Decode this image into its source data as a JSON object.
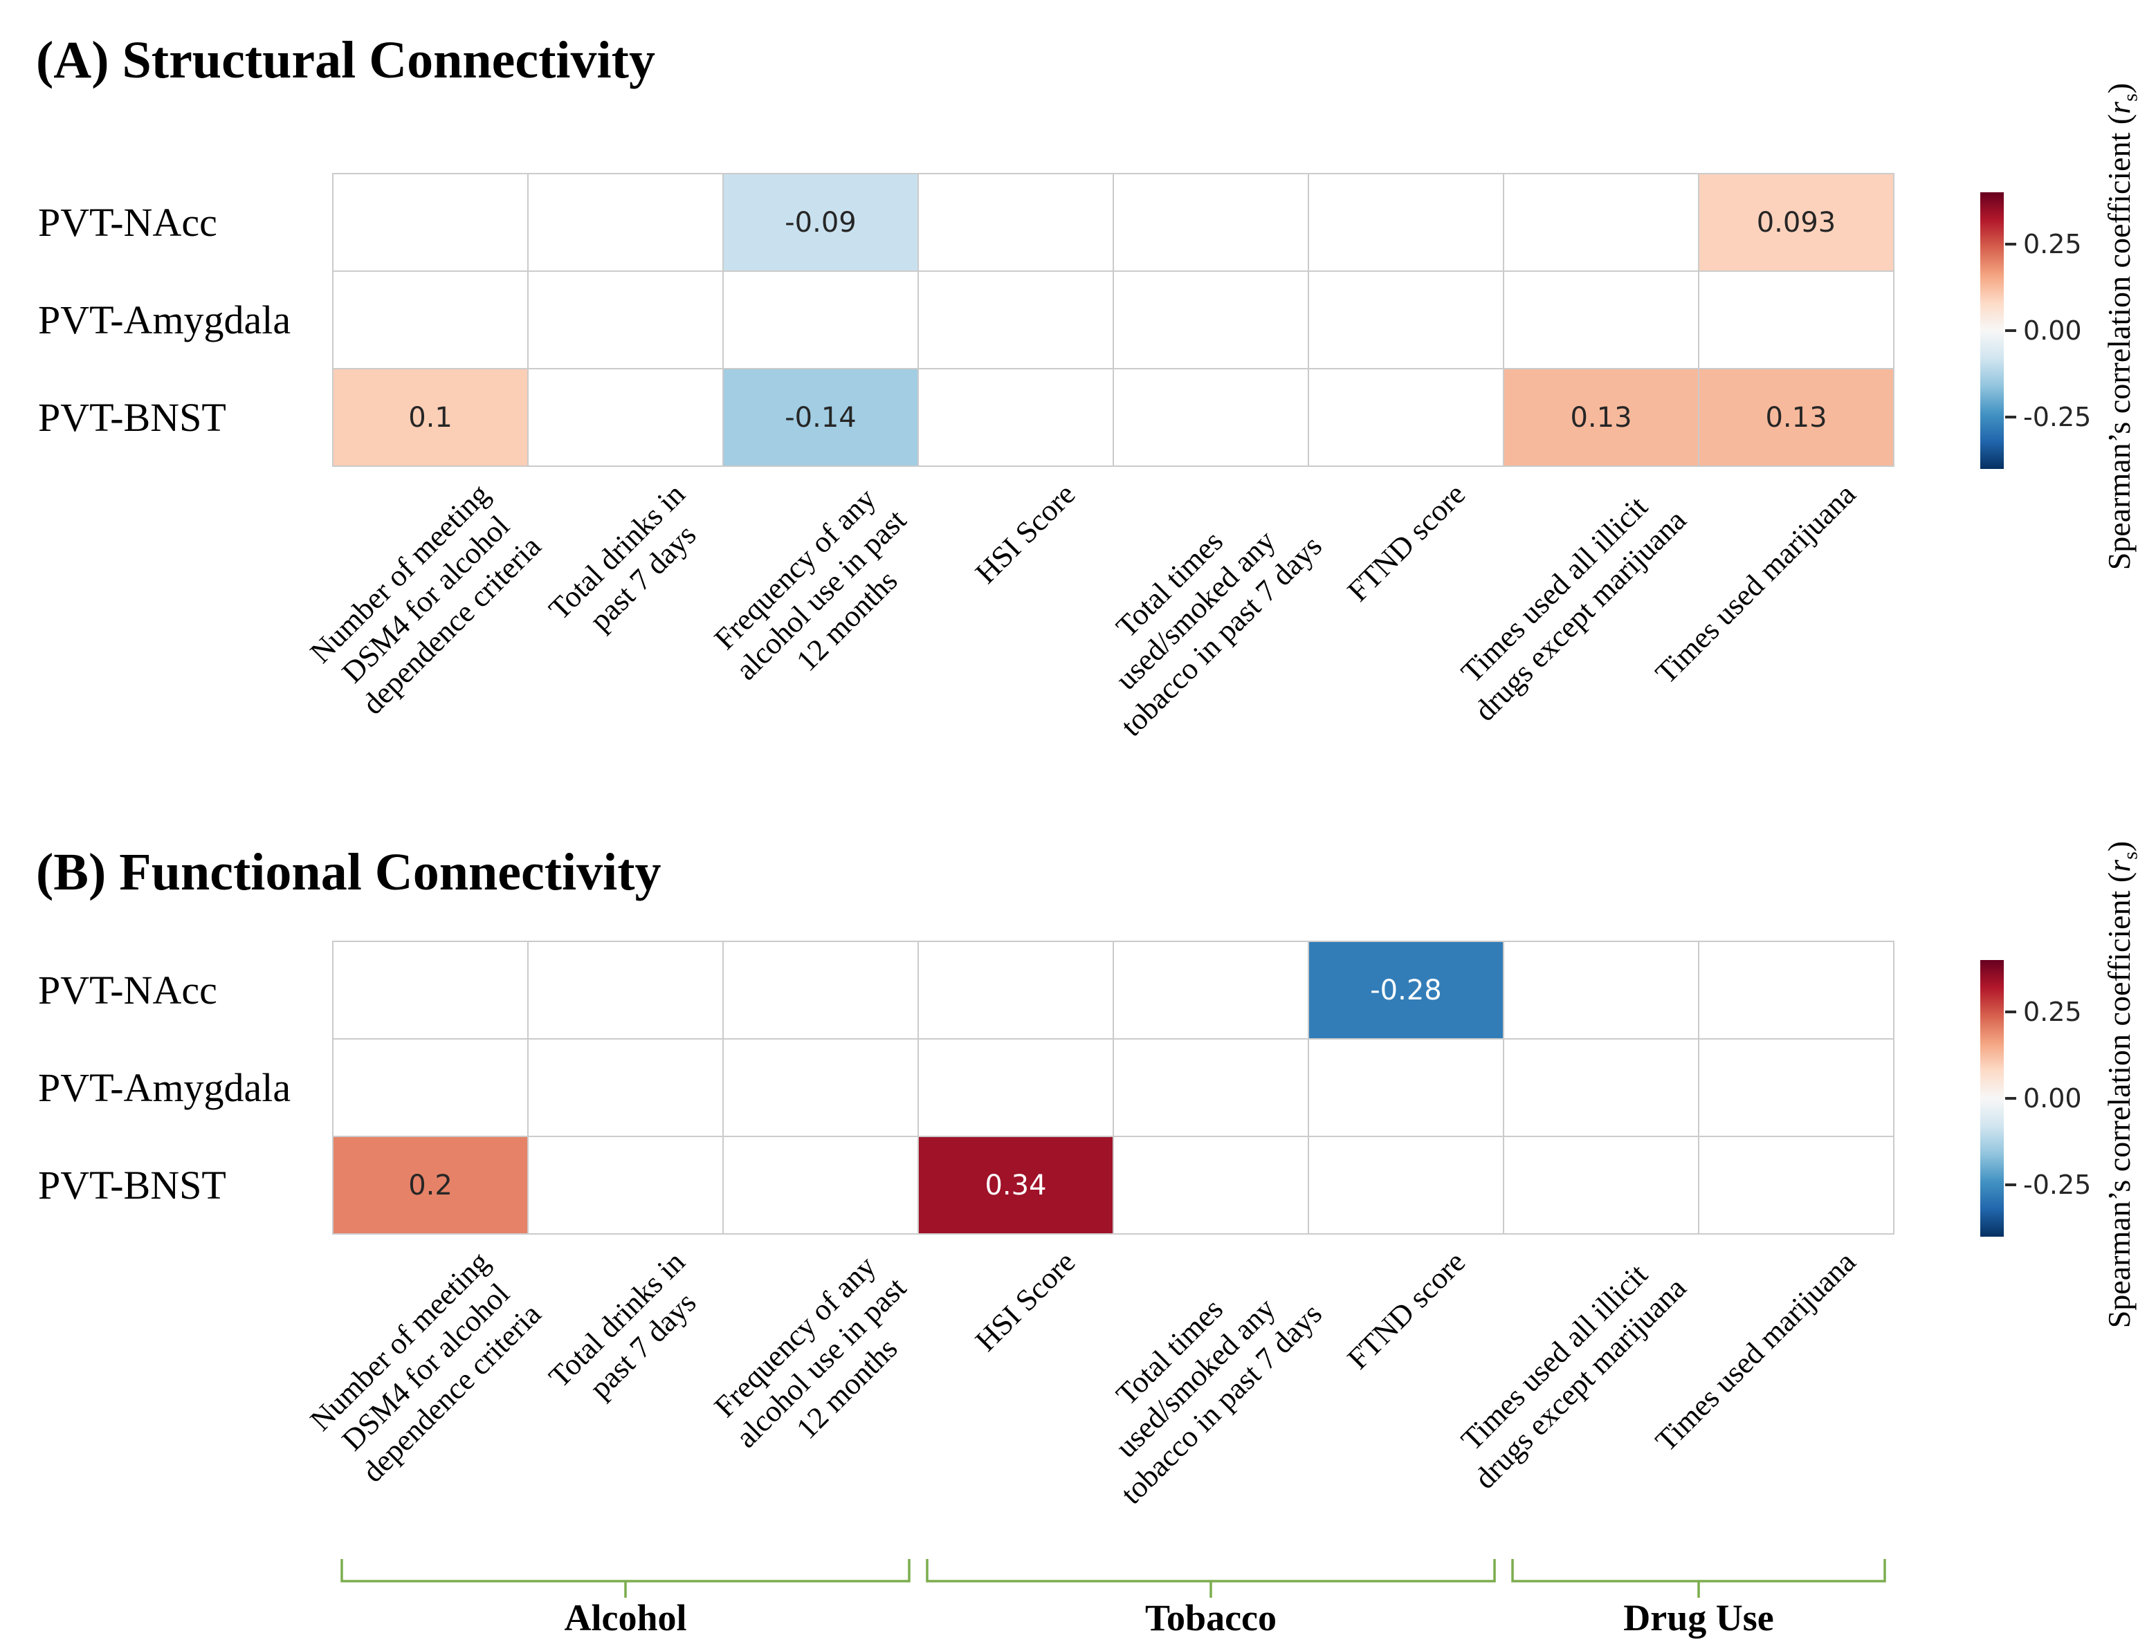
{
  "chart_data": [
    {
      "type": "heatmap",
      "panel": "A",
      "title": "(A) Structural Connectivity",
      "rows": [
        "PVT-NAcc",
        "PVT-Amygdala",
        "PVT-BNST"
      ],
      "columns": [
        "Number of meeting\nDSM4 for alcohol\ndependence criteria",
        "Total drinks in\npast 7 days",
        "Frequency of any\nalcohol use in past\n12 months",
        "HSI Score",
        "Total times\nused/smoked any\ntobacco in past 7 days",
        "FTND score",
        "Times used all illicit\ndrugs except marijuana",
        "Times used marijuana"
      ],
      "values": [
        [
          null,
          null,
          -0.09,
          null,
          null,
          null,
          null,
          0.093
        ],
        [
          null,
          null,
          null,
          null,
          null,
          null,
          null,
          null
        ],
        [
          0.1,
          null,
          -0.14,
          null,
          null,
          null,
          0.13,
          0.13
        ]
      ],
      "value_labels": [
        [
          null,
          null,
          "-0.09",
          null,
          null,
          null,
          null,
          "0.093"
        ],
        [
          null,
          null,
          null,
          null,
          null,
          null,
          null,
          null
        ],
        [
          "0.1",
          null,
          "-0.14",
          null,
          null,
          null,
          "0.13",
          "0.13"
        ]
      ],
      "vmin": -0.4,
      "vmax": 0.4,
      "colorbar_ticks": [
        0.25,
        0,
        -0.25
      ],
      "colorbar_tick_labels": [
        "0.25",
        "0.00",
        "-0.25"
      ],
      "colorbar_label_prefix": "Spearman’s correlation coefficient (",
      "colorbar_label_var": "r",
      "colorbar_label_sub": "s",
      "colorbar_label_suffix": ")",
      "colormap_stops": [
        [
          0,
          "#053061"
        ],
        [
          0.1,
          "#2166ac"
        ],
        [
          0.2,
          "#4393c3"
        ],
        [
          0.3,
          "#92c5de"
        ],
        [
          0.4,
          "#d1e5f0"
        ],
        [
          0.5,
          "#f7f7f7"
        ],
        [
          0.6,
          "#fddbc7"
        ],
        [
          0.7,
          "#f4a582"
        ],
        [
          0.8,
          "#d6604d"
        ],
        [
          0.9,
          "#b2182b"
        ],
        [
          1,
          "#67001f"
        ]
      ]
    },
    {
      "type": "heatmap",
      "panel": "B",
      "title": "(B) Functional Connectivity",
      "rows": [
        "PVT-NAcc",
        "PVT-Amygdala",
        "PVT-BNST"
      ],
      "columns": [
        "Number of meeting\nDSM4 for alcohol\ndependence criteria",
        "Total drinks in\npast 7 days",
        "Frequency of any\nalcohol use in past\n12 months",
        "HSI Score",
        "Total times\nused/smoked any\ntobacco in past 7 days",
        "FTND score",
        "Times used all illicit\ndrugs except marijuana",
        "Times used marijuana"
      ],
      "values": [
        [
          null,
          null,
          null,
          null,
          null,
          -0.28,
          null,
          null
        ],
        [
          null,
          null,
          null,
          null,
          null,
          null,
          null,
          null
        ],
        [
          0.2,
          null,
          null,
          0.34,
          null,
          null,
          null,
          null
        ]
      ],
      "value_labels": [
        [
          null,
          null,
          null,
          null,
          null,
          "-0.28",
          null,
          null
        ],
        [
          null,
          null,
          null,
          null,
          null,
          null,
          null,
          null
        ],
        [
          "0.2",
          null,
          null,
          "0.34",
          null,
          null,
          null,
          null
        ]
      ],
      "vmin": -0.4,
      "vmax": 0.4,
      "colorbar_ticks": [
        0.25,
        0,
        -0.25
      ],
      "colorbar_tick_labels": [
        "0.25",
        "0.00",
        "-0.25"
      ],
      "colorbar_label_prefix": "Spearman’s correlation coefficient (",
      "colorbar_label_var": "r",
      "colorbar_label_sub": "s",
      "colorbar_label_suffix": ")",
      "colormap_stops": [
        [
          0,
          "#053061"
        ],
        [
          0.1,
          "#2166ac"
        ],
        [
          0.2,
          "#4393c3"
        ],
        [
          0.3,
          "#92c5de"
        ],
        [
          0.4,
          "#d1e5f0"
        ],
        [
          0.5,
          "#f7f7f7"
        ],
        [
          0.6,
          "#fddbc7"
        ],
        [
          0.7,
          "#f4a582"
        ],
        [
          0.8,
          "#d6604d"
        ],
        [
          0.9,
          "#b2182b"
        ],
        [
          1,
          "#67001f"
        ]
      ],
      "column_groups": {
        "color": "#7bad4e",
        "groups": [
          {
            "label": "Alcohol",
            "from": 0,
            "to": 2
          },
          {
            "label": "Tobacco",
            "from": 3,
            "to": 5
          },
          {
            "label": "Drug Use",
            "from": 6,
            "to": 7
          }
        ]
      }
    }
  ]
}
